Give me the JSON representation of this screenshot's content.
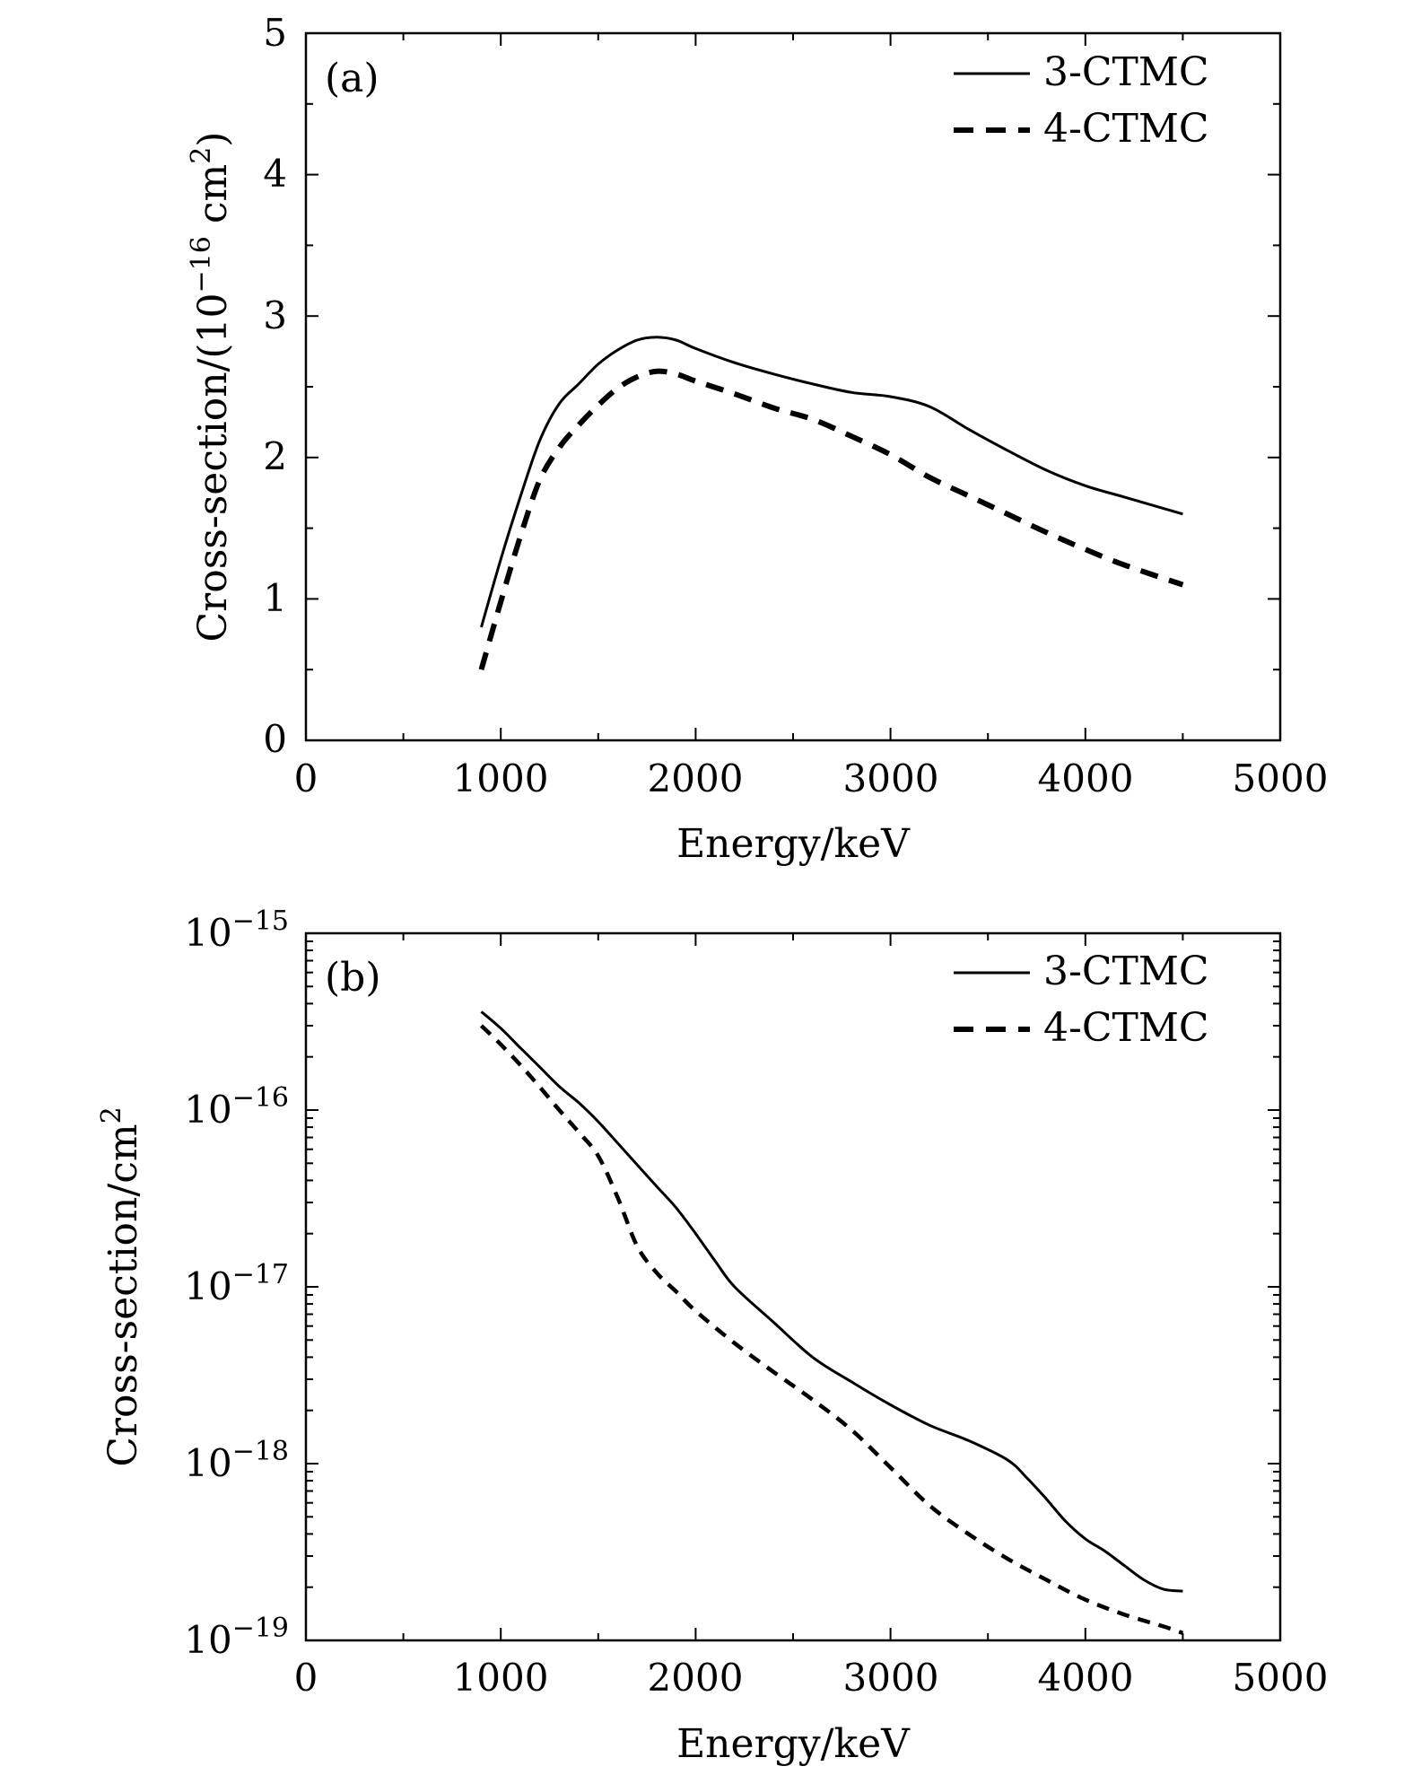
{
  "chart_data": [
    {
      "id": "a",
      "type": "line",
      "panel_label": "(a)",
      "xlabel": "Energy/keV",
      "ylabel_main": "Cross-section/(10",
      "ylabel_exp": "−16",
      "ylabel_unit": " cm",
      "ylabel_unit_exp": "2",
      "ylabel_close": ")",
      "yscale": "linear",
      "xlim": [
        0,
        5000
      ],
      "ylim": [
        0,
        5
      ],
      "xticks": [
        0,
        1000,
        2000,
        3000,
        4000,
        5000
      ],
      "xtick_labels": [
        "0",
        "1000",
        "2000",
        "3000",
        "4000",
        "5000"
      ],
      "yticks": [
        0,
        1,
        2,
        3,
        4,
        5
      ],
      "ytick_labels": [
        "0",
        "1",
        "2",
        "3",
        "4",
        "5"
      ],
      "legend_position": "top-right",
      "series": [
        {
          "name": "3-CTMC",
          "style": "solid",
          "x": [
            900,
            1000,
            1100,
            1200,
            1300,
            1400,
            1500,
            1600,
            1700,
            1800,
            1900,
            2000,
            2200,
            2400,
            2600,
            2800,
            3000,
            3200,
            3400,
            3600,
            3800,
            4000,
            4200,
            4500
          ],
          "y": [
            0.8,
            1.28,
            1.72,
            2.12,
            2.38,
            2.52,
            2.66,
            2.76,
            2.83,
            2.85,
            2.83,
            2.77,
            2.67,
            2.59,
            2.52,
            2.46,
            2.43,
            2.36,
            2.2,
            2.05,
            1.91,
            1.8,
            1.72,
            1.6
          ]
        },
        {
          "name": "4-CTMC",
          "style": "dashed",
          "x": [
            900,
            1000,
            1100,
            1200,
            1300,
            1400,
            1500,
            1600,
            1700,
            1800,
            1900,
            2000,
            2200,
            2400,
            2600,
            2800,
            3000,
            3200,
            3400,
            3600,
            3800,
            4000,
            4200,
            4500
          ],
          "y": [
            0.5,
            0.98,
            1.44,
            1.84,
            2.07,
            2.23,
            2.37,
            2.49,
            2.57,
            2.61,
            2.59,
            2.54,
            2.45,
            2.35,
            2.27,
            2.15,
            2.02,
            1.86,
            1.73,
            1.6,
            1.47,
            1.35,
            1.24,
            1.1
          ]
        }
      ]
    },
    {
      "id": "b",
      "type": "line",
      "panel_label": "(b)",
      "xlabel": "Energy/keV",
      "ylabel_main": "Cross-section/cm",
      "ylabel_exp": "2",
      "ylabel_unit": "",
      "ylabel_unit_exp": "",
      "ylabel_close": "",
      "yscale": "log",
      "xlim": [
        0,
        5000
      ],
      "ylim": [
        1e-19,
        1e-15
      ],
      "xticks": [
        0,
        1000,
        2000,
        3000,
        4000,
        5000
      ],
      "xtick_labels": [
        "0",
        "1000",
        "2000",
        "3000",
        "4000",
        "5000"
      ],
      "yticks": [
        1e-19,
        1e-18,
        1e-17,
        1e-16,
        1e-15
      ],
      "ytick_base": "10",
      "ytick_exps": [
        "−19",
        "−18",
        "−17",
        "−16",
        "−15"
      ],
      "legend_position": "top-right",
      "series": [
        {
          "name": "3-CTMC",
          "style": "solid",
          "x": [
            900,
            1000,
            1100,
            1200,
            1300,
            1400,
            1500,
            1600,
            1700,
            1800,
            1900,
            2000,
            2100,
            2200,
            2400,
            2600,
            2800,
            3000,
            3200,
            3400,
            3600,
            3700,
            3800,
            3900,
            4000,
            4100,
            4200,
            4300,
            4400,
            4500
          ],
          "y": [
            3.6e-16,
            2.9e-16,
            2.25e-16,
            1.75e-16,
            1.36e-16,
            1.1e-16,
            8.6e-17,
            6.5e-17,
            4.9e-17,
            3.7e-17,
            2.8e-17,
            2e-17,
            1.4e-17,
            1e-17,
            6.3e-18,
            4e-18,
            2.9e-18,
            2.15e-18,
            1.65e-18,
            1.35e-18,
            1.05e-18,
            8.3e-19,
            6.3e-19,
            4.7e-19,
            3.75e-19,
            3.2e-19,
            2.65e-19,
            2.2e-19,
            1.95e-19,
            1.9e-19
          ]
        },
        {
          "name": "4-CTMC",
          "style": "dashed",
          "x": [
            900,
            1000,
            1100,
            1200,
            1300,
            1400,
            1500,
            1600,
            1700,
            1800,
            1900,
            2000,
            2200,
            2400,
            2600,
            2800,
            3000,
            3200,
            3400,
            3600,
            3800,
            4000,
            4200,
            4400,
            4500
          ],
          "y": [
            3e-16,
            2.35e-16,
            1.8e-16,
            1.35e-16,
            1e-16,
            7.5e-17,
            5.5e-17,
            3.2e-17,
            1.7e-17,
            1.2e-17,
            9.4e-18,
            7.3e-18,
            4.8e-18,
            3.3e-18,
            2.3e-18,
            1.55e-18,
            9.5e-19,
            5.8e-19,
            4e-19,
            2.9e-19,
            2.2e-19,
            1.7e-19,
            1.4e-19,
            1.2e-19,
            1.1e-19
          ]
        }
      ]
    }
  ]
}
